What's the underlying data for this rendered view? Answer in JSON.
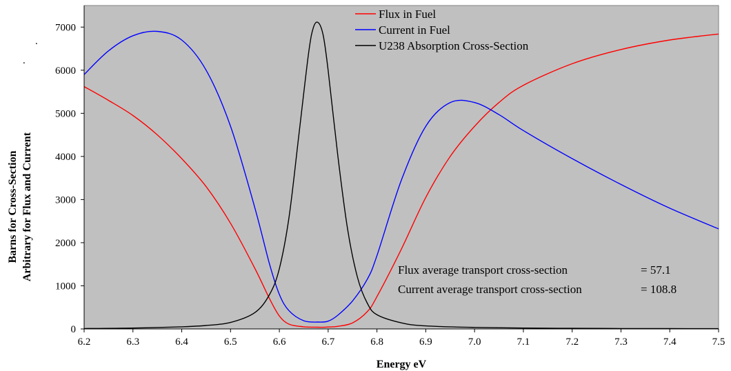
{
  "chart_data": {
    "type": "line",
    "xlabel": "Energy eV",
    "ylabel_lines": [
      "Barns for Cross-Section",
      "Arbitrary for Flux and Current"
    ],
    "xlim": [
      6.2,
      7.5
    ],
    "ylim": [
      0,
      7500
    ],
    "x_ticks": [
      "6.2",
      "6.3",
      "6.4",
      "6.5",
      "6.6",
      "6.7",
      "6.8",
      "6.9",
      "7.0",
      "7.1",
      "7.2",
      "7.3",
      "7.4",
      "7.5"
    ],
    "y_ticks": [
      "0",
      "1000",
      "2000",
      "3000",
      "4000",
      "5000",
      "6000",
      "7000"
    ],
    "grid": false,
    "plot_background": "#c0c0c0",
    "legend_position": "top-center",
    "series": [
      {
        "name": "Flux in Fuel",
        "color": "#ff0000",
        "x": [
          6.2,
          6.25,
          6.3,
          6.35,
          6.4,
          6.45,
          6.5,
          6.55,
          6.58,
          6.6,
          6.62,
          6.65,
          6.68,
          6.7,
          6.72,
          6.75,
          6.78,
          6.8,
          6.85,
          6.9,
          6.95,
          7.0,
          7.05,
          7.1,
          7.2,
          7.3,
          7.4,
          7.5
        ],
        "values": [
          5620,
          5300,
          4950,
          4500,
          3950,
          3300,
          2450,
          1400,
          700,
          300,
          110,
          50,
          40,
          45,
          60,
          140,
          400,
          750,
          1850,
          3050,
          4000,
          4700,
          5250,
          5650,
          6150,
          6480,
          6700,
          6840
        ]
      },
      {
        "name": "Current in Fuel",
        "color": "#0000ff",
        "x": [
          6.2,
          6.25,
          6.3,
          6.35,
          6.4,
          6.45,
          6.5,
          6.55,
          6.58,
          6.6,
          6.62,
          6.65,
          6.68,
          6.7,
          6.72,
          6.75,
          6.78,
          6.8,
          6.85,
          6.9,
          6.95,
          7.0,
          7.05,
          7.1,
          7.2,
          7.3,
          7.4,
          7.5
        ],
        "values": [
          5900,
          6450,
          6800,
          6900,
          6700,
          6000,
          4700,
          2800,
          1500,
          800,
          420,
          190,
          160,
          180,
          320,
          650,
          1150,
          1700,
          3450,
          4700,
          5250,
          5250,
          4970,
          4600,
          3950,
          3350,
          2800,
          2320
        ]
      },
      {
        "name": "U238 Absorption Cross-Section",
        "color": "#000000",
        "x": [
          6.2,
          6.3,
          6.4,
          6.45,
          6.5,
          6.55,
          6.58,
          6.6,
          6.62,
          6.64,
          6.66,
          6.67,
          6.68,
          6.69,
          6.7,
          6.72,
          6.74,
          6.76,
          6.78,
          6.8,
          6.85,
          6.9,
          7.0,
          7.1,
          7.2,
          7.3,
          7.4,
          7.5
        ],
        "values": [
          10,
          20,
          50,
          80,
          150,
          380,
          800,
          1400,
          2600,
          4500,
          6400,
          7000,
          7100,
          6800,
          6000,
          4000,
          2300,
          1200,
          600,
          330,
          140,
          70,
          35,
          20,
          14,
          10,
          8,
          6
        ]
      }
    ],
    "annotations": [
      {
        "label": "Flux average transport cross-section",
        "value": "=   57.1"
      },
      {
        "label": "Current average transport cross-section",
        "value": "= 108.8"
      }
    ],
    "stray_marks": [
      ".",
      "."
    ]
  }
}
